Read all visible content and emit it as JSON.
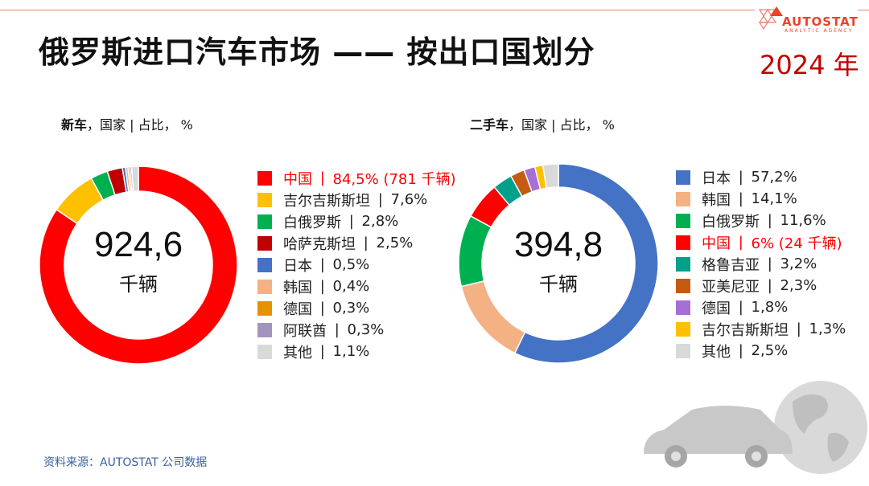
{
  "header": {
    "title": "俄罗斯进口汽车市场 —— 按出口国划分",
    "year": "2024 年",
    "logo_text": "AUTOSTAT",
    "logo_sub": "ANALYTIC AGENCY"
  },
  "source": "资料来源：AUTOSTAT 公司数据",
  "chart_data": [
    {
      "type": "pie",
      "donut": true,
      "title_bold": "新车",
      "title_rest": "，国家 | 占比， %",
      "center_value": "924,6",
      "center_unit": "千辆",
      "legend_placement": "right",
      "slices": [
        {
          "label": "中国",
          "value": 84.5,
          "text": "84,5% (781 千辆)",
          "color": "#ff0000",
          "highlight": true
        },
        {
          "label": "吉尔吉斯斯坦",
          "value": 7.6,
          "text": "7,6%",
          "color": "#ffc000"
        },
        {
          "label": "白俄罗斯",
          "value": 2.8,
          "text": "2,8%",
          "color": "#00b050"
        },
        {
          "label": "哈萨克斯坦",
          "value": 2.5,
          "text": "2,5%",
          "color": "#c00000"
        },
        {
          "label": "日本",
          "value": 0.5,
          "text": "0,5%",
          "color": "#4472c4"
        },
        {
          "label": "韩国",
          "value": 0.4,
          "text": "0,4%",
          "color": "#f4b183"
        },
        {
          "label": "德国",
          "value": 0.3,
          "text": "0,3%",
          "color": "#e69100"
        },
        {
          "label": "阿联酋",
          "value": 0.3,
          "text": "0,3%",
          "color": "#a294bc"
        },
        {
          "label": "其他",
          "value": 1.1,
          "text": "1,1%",
          "color": "#d9d9d9"
        }
      ]
    },
    {
      "type": "pie",
      "donut": true,
      "title_bold": "二手车",
      "title_rest": "，国家 | 占比， %",
      "center_value": "394,8",
      "center_unit": "千辆",
      "legend_placement": "right",
      "slices": [
        {
          "label": "日本",
          "value": 57.2,
          "text": "57,2%",
          "color": "#4472c4"
        },
        {
          "label": "韩国",
          "value": 14.1,
          "text": "14,1%",
          "color": "#f4b183"
        },
        {
          "label": "白俄罗斯",
          "value": 11.6,
          "text": "11,6%",
          "color": "#00b050"
        },
        {
          "label": "中国",
          "value": 6,
          "text": "6% (24 千辆)",
          "color": "#ff0000",
          "highlight": true
        },
        {
          "label": "格鲁吉亚",
          "value": 3.2,
          "text": "3,2%",
          "color": "#00a08a"
        },
        {
          "label": "亚美尼亚",
          "value": 2.3,
          "text": "2,3%",
          "color": "#c55a11"
        },
        {
          "label": "德国",
          "value": 1.8,
          "text": "1,8%",
          "color": "#a56fd6"
        },
        {
          "label": "吉尔吉斯斯坦",
          "value": 1.3,
          "text": "1,3%",
          "color": "#ffc000"
        },
        {
          "label": "其他",
          "value": 2.5,
          "text": "2,5%",
          "color": "#d9d9d9"
        }
      ]
    }
  ]
}
